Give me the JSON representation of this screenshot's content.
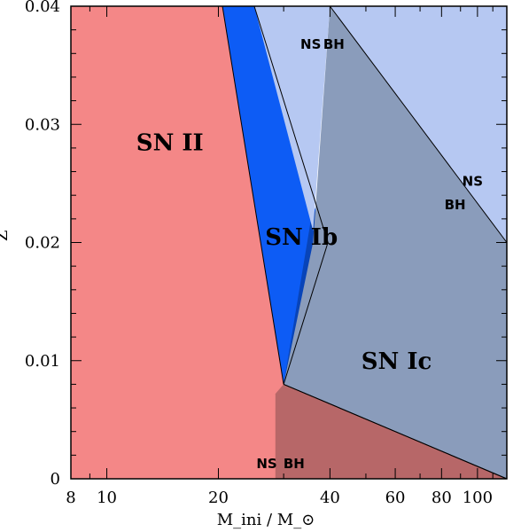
{
  "chart_data": {
    "type": "area",
    "title": "",
    "xlabel": "M_ini / M_⊙",
    "ylabel": "Z",
    "xscale": "log",
    "xlim": [
      8,
      120
    ],
    "ylim": [
      0,
      0.04
    ],
    "x_ticks": [
      {
        "value": 8,
        "label": "8"
      },
      {
        "value": 10,
        "label": "10"
      },
      {
        "value": 20,
        "label": "20"
      },
      {
        "value": 40,
        "label": "40"
      },
      {
        "value": 60,
        "label": "60"
      },
      {
        "value": 80,
        "label": "80"
      },
      {
        "value": 100,
        "label": "100"
      }
    ],
    "y_ticks": [
      {
        "value": 0,
        "label": "0"
      },
      {
        "value": 0.01,
        "label": "0.01"
      },
      {
        "value": 0.02,
        "label": "0.02"
      },
      {
        "value": 0.03,
        "label": "0.03"
      },
      {
        "value": 0.04,
        "label": "0.04"
      }
    ],
    "regions": [
      {
        "name": "SN II",
        "color": "#f48787",
        "points": [
          [
            8,
            0
          ],
          [
            8,
            0.04
          ],
          [
            20.5,
            0.04
          ],
          [
            30,
            0.008
          ],
          [
            120,
            0
          ]
        ]
      },
      {
        "name": "SN Ib",
        "color": "#0d5cf5",
        "points": [
          [
            20.5,
            0.04
          ],
          [
            25,
            0.04
          ],
          [
            38,
            0.021
          ],
          [
            39.5,
            0.02
          ],
          [
            34,
            0.014
          ],
          [
            30,
            0.008
          ]
        ]
      },
      {
        "name": "SN Ib dark",
        "color": "#0844b8",
        "points": [
          [
            36,
            0.023
          ],
          [
            39.5,
            0.02
          ],
          [
            34,
            0.014
          ],
          [
            30,
            0.008
          ]
        ]
      },
      {
        "name": "SN Ib lower",
        "color": "#0d5cf5",
        "points": [
          [
            30,
            0.008
          ],
          [
            55,
            0.004
          ],
          [
            116,
            0
          ],
          [
            120,
            0
          ],
          [
            110,
            0.0005
          ],
          [
            60,
            0.004
          ]
        ]
      },
      {
        "name": "SN Ic",
        "color": "#8a9cbb",
        "points": [
          [
            30,
            0.008
          ],
          [
            36,
            0.02
          ],
          [
            40,
            0.04
          ],
          [
            120,
            0.04
          ],
          [
            120,
            0
          ]
        ]
      },
      {
        "name": "NS region upper",
        "color": "#b6c8f2",
        "points": [
          [
            25,
            0.04
          ],
          [
            40,
            0.04
          ],
          [
            36,
            0.021
          ]
        ]
      },
      {
        "name": "NS region right",
        "color": "#b6c8f2",
        "points": [
          [
            40,
            0.04
          ],
          [
            120,
            0.04
          ],
          [
            120,
            0.02
          ]
        ]
      },
      {
        "name": "SN II BH",
        "color": "#b76768",
        "points": [
          [
            28.5,
            0
          ],
          [
            28.5,
            0.0072
          ],
          [
            30,
            0.008
          ],
          [
            60,
            0.004
          ],
          [
            120,
            0
          ]
        ]
      }
    ],
    "region_labels": [
      {
        "text": "SN II",
        "x": 14.8,
        "y": 0.0278
      },
      {
        "text": "SN Ib",
        "x": 33.5,
        "y": 0.0198
      },
      {
        "text": "SN Ic",
        "x": 60.5,
        "y": 0.0093
      }
    ],
    "remnant_labels": [
      {
        "text": "NS",
        "x": 35.5,
        "y": 0.0364
      },
      {
        "text": "BH",
        "x": 41,
        "y": 0.0364
      },
      {
        "text": "NS",
        "x": 97,
        "y": 0.0248
      },
      {
        "text": "BH",
        "x": 87,
        "y": 0.0228
      },
      {
        "text": "NS",
        "x": 27,
        "y": 0.0009
      },
      {
        "text": "BH",
        "x": 32,
        "y": 0.0009
      }
    ]
  }
}
